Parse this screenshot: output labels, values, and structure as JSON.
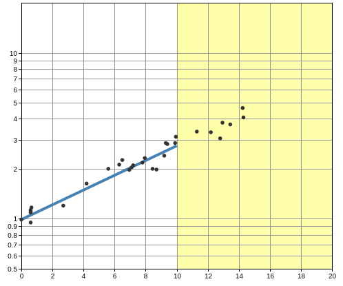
{
  "chart_data": {
    "type": "scatter",
    "title": "",
    "xlabel": "",
    "ylabel": "",
    "xlim": [
      0,
      20
    ],
    "ylim": [
      0.5,
      20
    ],
    "y_scale": "log",
    "grid": true,
    "legend": "none",
    "x_ticks": [
      "0",
      "2",
      "4",
      "6",
      "8",
      "10",
      "12",
      "14",
      "16",
      "18",
      "20"
    ],
    "y_ticks": [
      {
        "value": 0.5,
        "label": "0.5"
      },
      {
        "value": 0.6,
        "label": "0.6"
      },
      {
        "value": 0.7,
        "label": "0.7"
      },
      {
        "value": 0.8,
        "label": "0.8"
      },
      {
        "value": 0.9,
        "label": "0.9"
      },
      {
        "value": 1,
        "label": "1"
      },
      {
        "value": 2,
        "label": "2"
      },
      {
        "value": 3,
        "label": "3"
      },
      {
        "value": 4,
        "label": "4"
      },
      {
        "value": 5,
        "label": "5"
      },
      {
        "value": 6,
        "label": "6"
      },
      {
        "value": 7,
        "label": "7"
      },
      {
        "value": 8,
        "label": "8"
      },
      {
        "value": 9,
        "label": "9"
      },
      {
        "value": 10,
        "label": "10"
      }
    ],
    "y_gridlines": [
      0.5,
      0.6,
      0.7,
      0.8,
      0.9,
      1,
      2,
      3,
      4,
      5,
      6,
      7,
      8,
      9,
      10,
      20
    ],
    "shaded_region": {
      "x_from": 10,
      "x_to": 20,
      "color": "#ffffaa"
    },
    "fit_line": {
      "x": [
        0,
        10
      ],
      "y": [
        0.99,
        2.75
      ],
      "color": "#4682b4"
    },
    "points": [
      {
        "x": 0.0,
        "y": 0.99
      },
      {
        "x": 0.6,
        "y": 0.95
      },
      {
        "x": 0.6,
        "y": 1.09
      },
      {
        "x": 0.6,
        "y": 1.11
      },
      {
        "x": 0.6,
        "y": 1.13
      },
      {
        "x": 0.65,
        "y": 1.17
      },
      {
        "x": 2.7,
        "y": 1.2
      },
      {
        "x": 4.2,
        "y": 1.63
      },
      {
        "x": 5.6,
        "y": 2.0
      },
      {
        "x": 6.3,
        "y": 2.12
      },
      {
        "x": 6.5,
        "y": 2.26
      },
      {
        "x": 6.95,
        "y": 1.97
      },
      {
        "x": 7.1,
        "y": 2.04
      },
      {
        "x": 7.2,
        "y": 2.1
      },
      {
        "x": 7.8,
        "y": 2.18
      },
      {
        "x": 7.95,
        "y": 2.32
      },
      {
        "x": 8.45,
        "y": 2.0
      },
      {
        "x": 8.7,
        "y": 1.98
      },
      {
        "x": 9.2,
        "y": 2.4
      },
      {
        "x": 9.3,
        "y": 2.86
      },
      {
        "x": 9.4,
        "y": 2.82
      },
      {
        "x": 9.9,
        "y": 2.86
      },
      {
        "x": 9.95,
        "y": 3.12
      },
      {
        "x": 11.3,
        "y": 3.35
      },
      {
        "x": 12.2,
        "y": 3.32
      },
      {
        "x": 12.8,
        "y": 3.05
      },
      {
        "x": 12.95,
        "y": 3.79
      },
      {
        "x": 13.45,
        "y": 3.7
      },
      {
        "x": 14.25,
        "y": 4.65
      },
      {
        "x": 14.3,
        "y": 4.08
      }
    ],
    "point_color": "#333333"
  }
}
